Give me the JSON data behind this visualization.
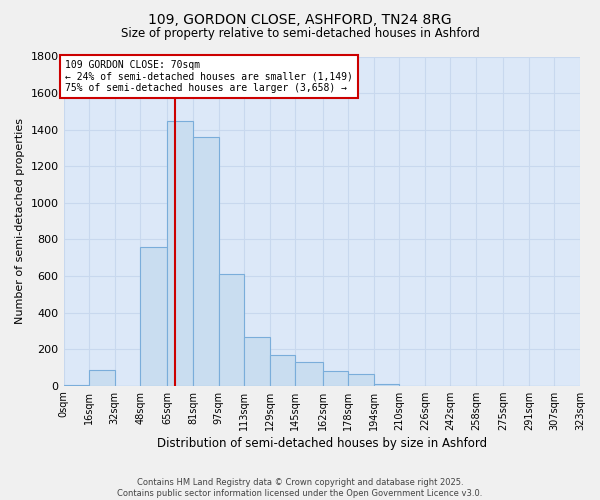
{
  "title1": "109, GORDON CLOSE, ASHFORD, TN24 8RG",
  "title2": "Size of property relative to semi-detached houses in Ashford",
  "xlabel": "Distribution of semi-detached houses by size in Ashford",
  "ylabel": "Number of semi-detached properties",
  "bin_edges": [
    0,
    16,
    32,
    48,
    65,
    81,
    97,
    113,
    129,
    145,
    162,
    178,
    194,
    210,
    226,
    242,
    258,
    275,
    291,
    307,
    323
  ],
  "bin_labels": [
    "0sqm",
    "16sqm",
    "32sqm",
    "48sqm",
    "65sqm",
    "81sqm",
    "97sqm",
    "113sqm",
    "129sqm",
    "145sqm",
    "162sqm",
    "178sqm",
    "194sqm",
    "210sqm",
    "226sqm",
    "242sqm",
    "258sqm",
    "275sqm",
    "291sqm",
    "307sqm",
    "323sqm"
  ],
  "counts": [
    2,
    85,
    0,
    760,
    1450,
    1360,
    610,
    265,
    170,
    130,
    80,
    65,
    8,
    0,
    0,
    0,
    0,
    0,
    0,
    0
  ],
  "bar_color": "#c9ddf0",
  "bar_edge_color": "#7aadda",
  "property_size": 70,
  "property_line_color": "#cc0000",
  "annotation_text": "109 GORDON CLOSE: 70sqm\n← 24% of semi-detached houses are smaller (1,149)\n75% of semi-detached houses are larger (3,658) →",
  "annotation_box_color": "#ffffff",
  "annotation_box_edge": "#cc0000",
  "ylim": [
    0,
    1800
  ],
  "yticks": [
    0,
    200,
    400,
    600,
    800,
    1000,
    1200,
    1400,
    1600,
    1800
  ],
  "grid_color": "#c8d8ee",
  "bg_color": "#dce8f8",
  "fig_bg_color": "#f0f0f0",
  "footer": "Contains HM Land Registry data © Crown copyright and database right 2025.\nContains public sector information licensed under the Open Government Licence v3.0."
}
